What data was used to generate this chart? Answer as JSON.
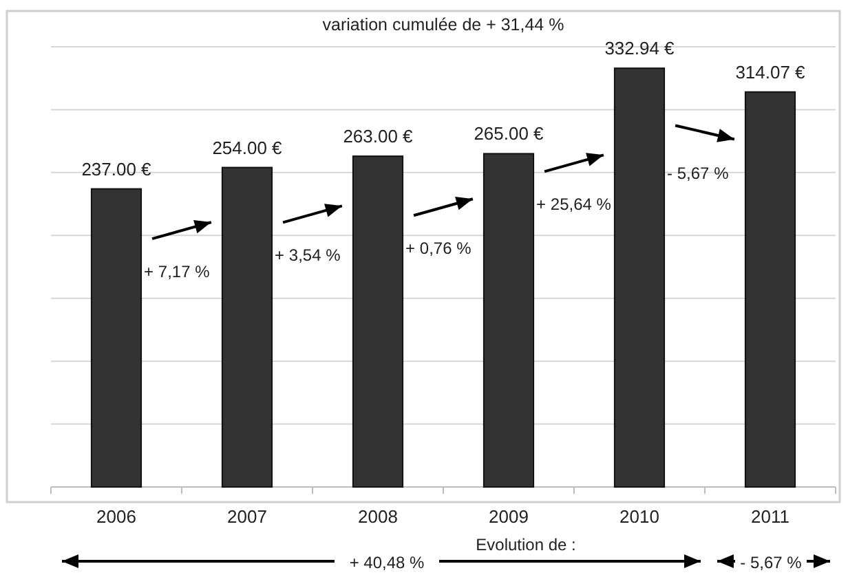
{
  "chart_data": {
    "type": "bar",
    "categories": [
      "2006",
      "2007",
      "2008",
      "2009",
      "2010",
      "2011"
    ],
    "values": [
      237,
      254,
      263,
      265,
      332.94,
      314.07
    ],
    "color": "#333333",
    "value_labels": [
      "237.00 €",
      "254.00 €",
      "263.00 €",
      "265.00 €",
      "332.94 €",
      "314.07 €"
    ],
    "ylim": [
      0,
      350
    ],
    "yticks": [
      {
        "value": 0,
        "label": null
      },
      {
        "value": 50,
        "label": null
      },
      {
        "value": 100,
        "label": null
      },
      {
        "value": 150,
        "label": null
      },
      {
        "value": 200,
        "label": null
      },
      {
        "value": 250,
        "label": null
      },
      {
        "value": 300,
        "label": null
      },
      {
        "value": 350,
        "label": null
      }
    ],
    "grid": "y",
    "tick_labels": "x",
    "title": "variation cumulée de + 31,44 %",
    "xlabel": "Evolution de :",
    "annotations": [
      "+ 7,17 %",
      "+ 3,54 %",
      "+ 0,76 %",
      "+ 25,64 %",
      "- 5,67 %",
      "+ 40,48 %",
      "- 5,67 %"
    ]
  }
}
